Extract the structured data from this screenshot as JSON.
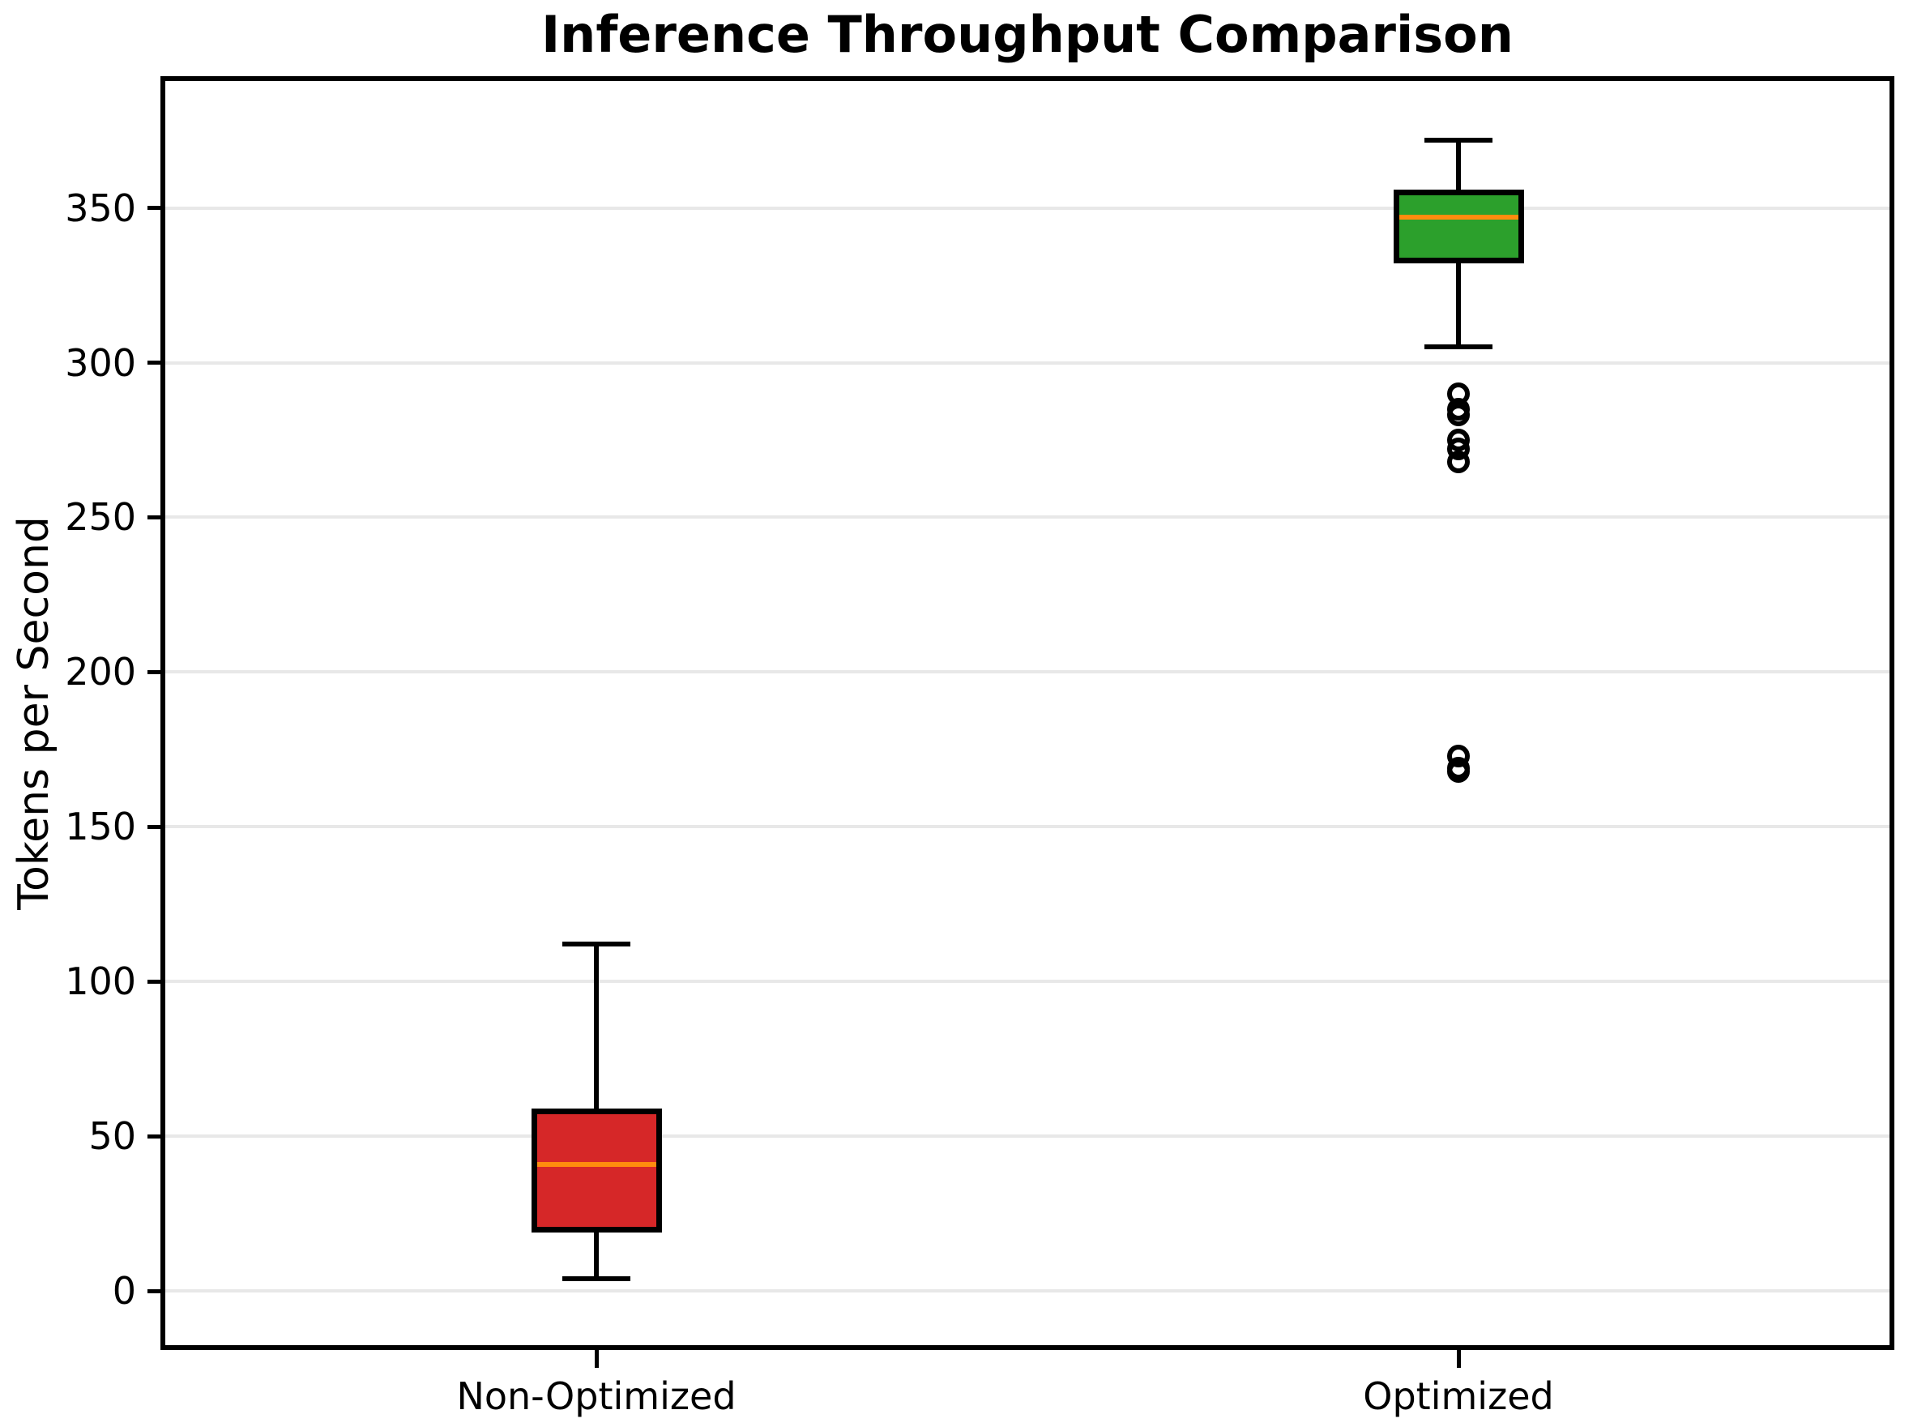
{
  "chart_data": {
    "type": "box",
    "title": "Inference Throughput Comparison",
    "ylabel": "Tokens per Second",
    "xlabel": "",
    "categories": [
      "Non-Optimized",
      "Optimized"
    ],
    "yticks": [
      0,
      50,
      100,
      150,
      200,
      250,
      300,
      350
    ],
    "ylim": [
      -17.5,
      391
    ],
    "grid": "horizontal",
    "legend": "none",
    "median_color": "#ff8c0e",
    "box_edge_color": "#000000",
    "gridline_color": "#e8e8e8",
    "series": [
      {
        "name": "Non-Optimized",
        "whisker_low": 4,
        "q1": 19,
        "median": 41,
        "q3": 59,
        "whisker_high": 112,
        "outliers": [],
        "fill_color": "#d62728"
      },
      {
        "name": "Optimized",
        "whisker_low": 305,
        "q1": 332,
        "median": 347,
        "q3": 356,
        "whisker_high": 372,
        "outliers": [
          290,
          285,
          283,
          275,
          272,
          268,
          173,
          169,
          168
        ],
        "fill_color": "#2ca02c"
      }
    ]
  }
}
